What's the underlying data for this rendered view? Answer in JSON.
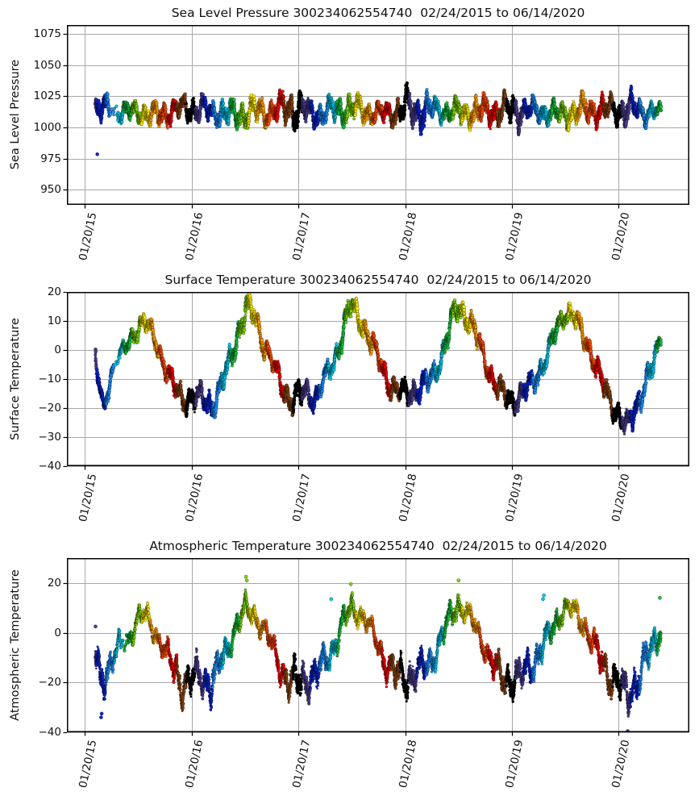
{
  "figure": {
    "background": "#ffffff",
    "frame_color": "#000000",
    "grid_color": "#a8a8a8",
    "text_color": "#111111"
  },
  "palette": {
    "month_colors": [
      "#000000",
      "#4b3d8f",
      "#0a23cf",
      "#1e90ff",
      "#00c5e8",
      "#18c23c",
      "#7cd40c",
      "#ffeb00",
      "#ff9f00",
      "#ff4a00",
      "#f40000",
      "#8b4513"
    ],
    "note": "scatter point color cycles by calendar month Jan..Dec, repeating every year"
  },
  "time_axis": {
    "epoch": "2015-01-20",
    "data_start_date": "02/24/2015",
    "data_end_date": "06/14/2020",
    "start_day": 35,
    "end_day": 1972,
    "xlim_days": [
      -62,
      2069
    ],
    "tick_days": [
      0,
      365,
      731,
      1096,
      1461,
      1826
    ],
    "tick_labels": [
      "01/20/15",
      "01/20/16",
      "01/20/17",
      "01/20/18",
      "01/20/19",
      "01/20/20"
    ]
  },
  "chart_data": [
    {
      "type": "scatter",
      "title": "Sea Level Pressure 300234062554740  02/24/2015 to 06/14/2020",
      "ylabel": "Sea Level Pressure",
      "ylim": [
        938,
        1082
      ],
      "yticks": [
        1075,
        1050,
        1025,
        1000,
        975,
        950
      ],
      "ytick_labels": [
        "1075",
        "1050",
        "1025",
        "1000",
        "975",
        "950"
      ],
      "grid": true,
      "marker_radius": 1.7,
      "profile_keypoints_day_center_halfrange": [
        [
          35,
          1016,
          12
        ],
        [
          65,
          1014,
          12
        ],
        [
          85,
          1016,
          10,
          0.12
        ],
        [
          120,
          1013,
          10
        ],
        [
          155,
          1012,
          9
        ],
        [
          190,
          1013,
          10
        ],
        [
          220,
          1010,
          11
        ],
        [
          250,
          1009,
          11
        ],
        [
          280,
          1012,
          12
        ],
        [
          310,
          1014,
          10
        ],
        [
          340,
          1015,
          11
        ],
        [
          370,
          1015,
          12
        ],
        [
          400,
          1015,
          11
        ],
        [
          430,
          1012,
          10
        ],
        [
          460,
          1013,
          12
        ],
        [
          490,
          1010,
          12
        ],
        [
          520,
          1010,
          12
        ],
        [
          552,
          1012,
          13
        ],
        [
          585,
          1013,
          13
        ],
        [
          615,
          1012,
          12
        ],
        [
          645,
          1014,
          11
        ],
        [
          675,
          1015,
          13
        ],
        [
          700,
          1015,
          16
        ],
        [
          726,
          1016,
          18
        ],
        [
          745,
          1014,
          13
        ],
        [
          775,
          1011,
          11
        ],
        [
          805,
          1011,
          11
        ],
        [
          835,
          1013,
          12
        ],
        [
          865,
          1014,
          12
        ],
        [
          895,
          1015,
          13
        ],
        [
          925,
          1015,
          12
        ],
        [
          955,
          1014,
          11
        ],
        [
          985,
          1011,
          9
        ],
        [
          1015,
          1011,
          10
        ],
        [
          1045,
          1012,
          11
        ],
        [
          1075,
          1013,
          12
        ],
        [
          1104,
          1016,
          17
        ],
        [
          1130,
          1013,
          14
        ],
        [
          1159,
          1014,
          17
        ],
        [
          1190,
          1014,
          11
        ],
        [
          1220,
          1014,
          10
        ],
        [
          1250,
          1012,
          10
        ],
        [
          1280,
          1012,
          11
        ],
        [
          1310,
          1012,
          11
        ],
        [
          1352,
          1012,
          14
        ],
        [
          1380,
          1014,
          12
        ],
        [
          1410,
          1013,
          13
        ],
        [
          1440,
          1014,
          12
        ],
        [
          1477,
          1013,
          16
        ],
        [
          1505,
          1014,
          11
        ],
        [
          1535,
          1013,
          10
        ],
        [
          1565,
          1012,
          10
        ],
        [
          1595,
          1012,
          10
        ],
        [
          1625,
          1010,
          10
        ],
        [
          1655,
          1012,
          12
        ],
        [
          1685,
          1012,
          12
        ],
        [
          1715,
          1014,
          13
        ],
        [
          1745,
          1014,
          11
        ],
        [
          1772,
          1013,
          14
        ],
        [
          1800,
          1014,
          12
        ],
        [
          1826,
          1014,
          11
        ],
        [
          1863,
          1014,
          15
        ],
        [
          1890,
          1014,
          11
        ],
        [
          1915,
          1012,
          10
        ],
        [
          1945,
          1013,
          9
        ],
        [
          1972,
          1012,
          6
        ]
      ],
      "outliers_day_value": [
        [
          42,
          978.5
        ]
      ]
    },
    {
      "type": "scatter",
      "title": "Surface Temperature 300234062554740  02/24/2015 to 06/14/2020",
      "ylabel": "Surface Temperature",
      "ylim": [
        -40,
        20
      ],
      "yticks": [
        20,
        10,
        0,
        -10,
        -20,
        -30,
        -40
      ],
      "ytick_labels": [
        "20",
        "10",
        "0",
        "−10",
        "−20",
        "−30",
        "−40"
      ],
      "grid": true,
      "marker_radius": 1.7,
      "profile_keypoints_day_center_halfrange": [
        [
          35,
          -3,
          4
        ],
        [
          50,
          -14,
          5
        ],
        [
          63,
          -21,
          3
        ],
        [
          80,
          -13,
          4
        ],
        [
          95,
          -6,
          3
        ],
        [
          98,
          -5,
          2,
          0.12
        ],
        [
          118,
          -2,
          3
        ],
        [
          150,
          2,
          4
        ],
        [
          185,
          9,
          4
        ],
        [
          205,
          10,
          4
        ],
        [
          235,
          4,
          4
        ],
        [
          265,
          -3,
          4
        ],
        [
          300,
          -12,
          5
        ],
        [
          330,
          -17,
          5
        ],
        [
          365,
          -16,
          5
        ],
        [
          400,
          -17,
          5
        ],
        [
          430,
          -19,
          6
        ],
        [
          460,
          -14,
          5
        ],
        [
          490,
          -6,
          5
        ],
        [
          520,
          5,
          6
        ],
        [
          550,
          14,
          6
        ],
        [
          580,
          12,
          5
        ],
        [
          610,
          3,
          5
        ],
        [
          640,
          -4,
          4
        ],
        [
          670,
          -12,
          5
        ],
        [
          700,
          -17,
          5
        ],
        [
          731,
          -16,
          6
        ],
        [
          760,
          -15,
          5
        ],
        [
          790,
          -16,
          5
        ],
        [
          820,
          -10,
          4
        ],
        [
          850,
          -5,
          4
        ],
        [
          880,
          6,
          6
        ],
        [
          910,
          15,
          5
        ],
        [
          940,
          11,
          5
        ],
        [
          970,
          5,
          5
        ],
        [
          1000,
          -2,
          4
        ],
        [
          1030,
          -9,
          5
        ],
        [
          1060,
          -14,
          5
        ],
        [
          1096,
          -15,
          5
        ],
        [
          1125,
          -14,
          5
        ],
        [
          1155,
          -13,
          5
        ],
        [
          1185,
          -10,
          5
        ],
        [
          1215,
          -4,
          4
        ],
        [
          1245,
          6,
          6
        ],
        [
          1275,
          15,
          5
        ],
        [
          1305,
          12,
          5
        ],
        [
          1335,
          6,
          5
        ],
        [
          1365,
          -2,
          4
        ],
        [
          1395,
          -10,
          5
        ],
        [
          1425,
          -15,
          5
        ],
        [
          1461,
          -17,
          5
        ],
        [
          1490,
          -16,
          5
        ],
        [
          1520,
          -13,
          5
        ],
        [
          1550,
          -8,
          5
        ],
        [
          1580,
          -3,
          4
        ],
        [
          1610,
          6,
          5
        ],
        [
          1640,
          13,
          4
        ],
        [
          1670,
          12,
          4
        ],
        [
          1700,
          6,
          5
        ],
        [
          1730,
          0,
          4
        ],
        [
          1760,
          -9,
          5
        ],
        [
          1790,
          -16,
          5
        ],
        [
          1826,
          -22,
          5
        ],
        [
          1855,
          -27,
          5
        ],
        [
          1885,
          -20,
          6
        ],
        [
          1915,
          -12,
          5
        ],
        [
          1945,
          -6,
          5
        ],
        [
          1972,
          5,
          3
        ]
      ],
      "outliers_day_value": [
        [
          36,
          0.2
        ],
        [
          36.6,
          -0.6
        ]
      ]
    },
    {
      "type": "scatter",
      "title": "Atmospheric Temperature 300234062554740  02/24/2015 to 06/14/2020",
      "ylabel": "Atmospheric Temperature",
      "ylim": [
        -40,
        30
      ],
      "yticks": [
        20,
        0,
        -20,
        -40
      ],
      "ytick_labels": [
        "20",
        "0",
        "−20",
        "−40"
      ],
      "grid": true,
      "marker_radius": 1.45,
      "profile_keypoints_day_center_halfrange": [
        [
          35,
          -8,
          7
        ],
        [
          50,
          -19,
          9
        ],
        [
          75,
          -15,
          8
        ],
        [
          95,
          -10,
          6
        ],
        [
          120,
          -6,
          6,
          0.25
        ],
        [
          148,
          -3,
          5
        ],
        [
          180,
          6,
          5
        ],
        [
          205,
          7,
          5
        ],
        [
          235,
          1,
          5
        ],
        [
          265,
          -5,
          5
        ],
        [
          295,
          -13,
          7
        ],
        [
          330,
          -20,
          9
        ],
        [
          365,
          -19,
          9
        ],
        [
          395,
          -18,
          8
        ],
        [
          430,
          -20,
          9
        ],
        [
          460,
          -13,
          7
        ],
        [
          490,
          -6,
          6
        ],
        [
          520,
          4,
          6
        ],
        [
          550,
          9,
          6
        ],
        [
          580,
          7,
          5
        ],
        [
          610,
          2,
          5
        ],
        [
          640,
          -5,
          5
        ],
        [
          670,
          -14,
          7
        ],
        [
          700,
          -20,
          8
        ],
        [
          731,
          -20,
          9
        ],
        [
          760,
          -18,
          8
        ],
        [
          790,
          -17,
          8
        ],
        [
          820,
          -12,
          7
        ],
        [
          850,
          -6,
          6
        ],
        [
          880,
          3,
          6
        ],
        [
          910,
          10,
          6
        ],
        [
          940,
          8,
          5
        ],
        [
          970,
          3,
          5
        ],
        [
          1000,
          -4,
          5
        ],
        [
          1030,
          -12,
          7
        ],
        [
          1060,
          -17,
          8
        ],
        [
          1096,
          -18,
          9
        ],
        [
          1125,
          -17,
          8
        ],
        [
          1155,
          -15,
          8
        ],
        [
          1185,
          -11,
          7
        ],
        [
          1215,
          -4,
          6
        ],
        [
          1245,
          5,
          6
        ],
        [
          1275,
          12,
          6
        ],
        [
          1305,
          8,
          5
        ],
        [
          1335,
          3,
          5
        ],
        [
          1365,
          -5,
          5
        ],
        [
          1395,
          -13,
          7
        ],
        [
          1425,
          -18,
          8
        ],
        [
          1461,
          -19,
          8
        ],
        [
          1490,
          -18,
          8
        ],
        [
          1520,
          -14,
          8
        ],
        [
          1550,
          -9,
          7
        ],
        [
          1580,
          -3,
          6
        ],
        [
          1610,
          4,
          6
        ],
        [
          1640,
          10,
          5
        ],
        [
          1670,
          9,
          5
        ],
        [
          1700,
          5,
          6
        ],
        [
          1730,
          -2,
          6
        ],
        [
          1760,
          -10,
          7
        ],
        [
          1790,
          -16,
          8
        ],
        [
          1826,
          -20,
          8
        ],
        [
          1855,
          -26,
          9
        ],
        [
          1885,
          -20,
          9
        ],
        [
          1915,
          -12,
          8
        ],
        [
          1945,
          -6,
          7
        ],
        [
          1972,
          3,
          7
        ]
      ],
      "outliers_day_value": [
        [
          36,
          2.5
        ],
        [
          55,
          -34
        ],
        [
          57,
          -32.5
        ],
        [
          551,
          22.5
        ],
        [
          554,
          21
        ],
        [
          843,
          13.5
        ],
        [
          910,
          19.5
        ],
        [
          1279,
          21
        ],
        [
          1568,
          13.5
        ],
        [
          1571,
          15
        ],
        [
          1858,
          -39.5
        ],
        [
          1968,
          14
        ]
      ]
    }
  ]
}
